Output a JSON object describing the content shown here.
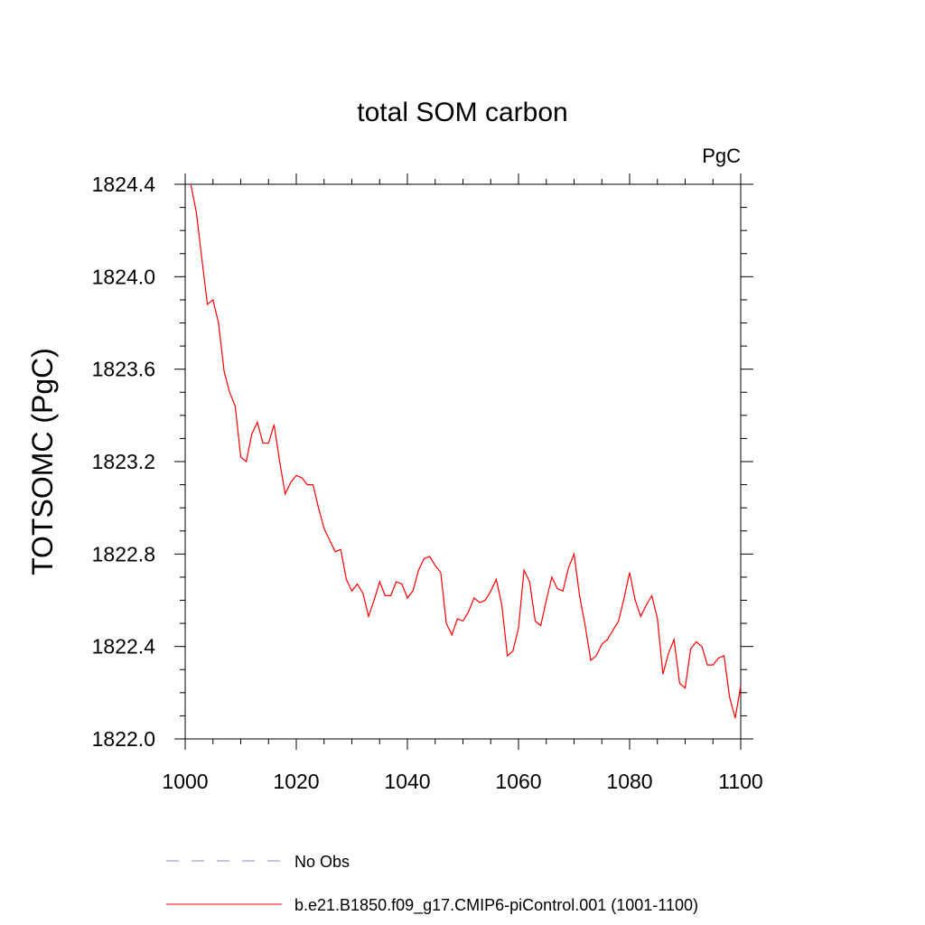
{
  "chart_data": {
    "type": "line",
    "title": "total SOM carbon",
    "units": "PgC",
    "ylabel": "TOTSOMC  (PgC)",
    "xlabel": "",
    "xlim": [
      1000,
      1100
    ],
    "ylim": [
      1822.0,
      1824.4
    ],
    "x_ticks": [
      1000,
      1020,
      1040,
      1060,
      1080,
      1100
    ],
    "y_ticks": [
      "1822.0",
      "1822.4",
      "1822.8",
      "1823.2",
      "1823.6",
      "1824.0",
      "1824.4"
    ],
    "grid": false,
    "series": [
      {
        "name": "No Obs",
        "color": "#8888cc",
        "dash": "dashed",
        "x": [],
        "y": []
      },
      {
        "name": "b.e21.B1850.f09_g17.CMIP6-piControl.001 (1001-1100)",
        "color": "#ff0000",
        "dash": "solid",
        "x": [
          1001,
          1002,
          1003,
          1004,
          1005,
          1006,
          1007,
          1008,
          1009,
          1010,
          1011,
          1012,
          1013,
          1014,
          1015,
          1016,
          1017,
          1018,
          1019,
          1020,
          1021,
          1022,
          1023,
          1024,
          1025,
          1026,
          1027,
          1028,
          1029,
          1030,
          1031,
          1032,
          1033,
          1034,
          1035,
          1036,
          1037,
          1038,
          1039,
          1040,
          1041,
          1042,
          1043,
          1044,
          1045,
          1046,
          1047,
          1048,
          1049,
          1050,
          1051,
          1052,
          1053,
          1054,
          1055,
          1056,
          1057,
          1058,
          1059,
          1060,
          1061,
          1062,
          1063,
          1064,
          1065,
          1066,
          1067,
          1068,
          1069,
          1070,
          1071,
          1072,
          1073,
          1074,
          1075,
          1076,
          1077,
          1078,
          1079,
          1080,
          1081,
          1082,
          1083,
          1084,
          1085,
          1086,
          1087,
          1088,
          1089,
          1090,
          1091,
          1092,
          1093,
          1094,
          1095,
          1096,
          1097,
          1098,
          1099,
          1100
        ],
        "y": [
          1824.4,
          1824.28,
          1824.08,
          1823.88,
          1823.9,
          1823.8,
          1823.59,
          1823.5,
          1823.44,
          1823.22,
          1823.2,
          1823.32,
          1823.37,
          1823.28,
          1823.28,
          1823.36,
          1823.2,
          1823.06,
          1823.11,
          1823.14,
          1823.13,
          1823.1,
          1823.1,
          1823.0,
          1822.91,
          1822.86,
          1822.81,
          1822.82,
          1822.69,
          1822.64,
          1822.67,
          1822.63,
          1822.53,
          1822.6,
          1822.68,
          1822.62,
          1822.62,
          1822.68,
          1822.67,
          1822.61,
          1822.64,
          1822.73,
          1822.78,
          1822.79,
          1822.75,
          1822.72,
          1822.5,
          1822.45,
          1822.52,
          1822.51,
          1822.55,
          1822.61,
          1822.59,
          1822.6,
          1822.64,
          1822.69,
          1822.58,
          1822.36,
          1822.38,
          1822.48,
          1822.73,
          1822.68,
          1822.51,
          1822.49,
          1822.6,
          1822.7,
          1822.65,
          1822.64,
          1822.74,
          1822.8,
          1822.62,
          1822.49,
          1822.34,
          1822.36,
          1822.41,
          1822.43,
          1822.47,
          1822.51,
          1822.61,
          1822.72,
          1822.6,
          1822.53,
          1822.58,
          1822.62,
          1822.52,
          1822.28,
          1822.37,
          1822.43,
          1822.24,
          1822.22,
          1822.39,
          1822.42,
          1822.4,
          1822.32,
          1822.32,
          1822.35,
          1822.36,
          1822.18,
          1822.09,
          1822.23
        ]
      }
    ],
    "legend_position": "bottom"
  }
}
